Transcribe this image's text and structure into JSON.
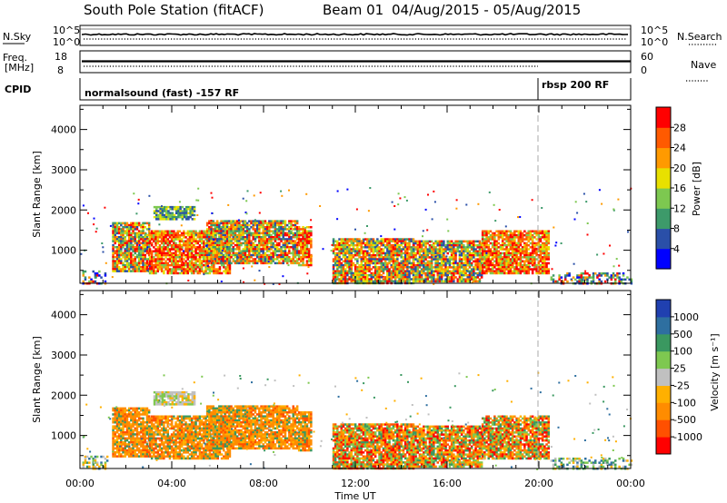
{
  "header": {
    "station": "South Pole Station (fitACF)",
    "beam": "Beam 01",
    "dates": "04/Aug/2015 - 05/Aug/2015"
  },
  "strip": {
    "nsky_label": "N.Sky",
    "nsearch_label": "N.Search",
    "nsky_ticks": [
      "10^5",
      "10^0"
    ],
    "freq_label": "Freq.",
    "freq_unit": "[MHz]",
    "freq_ticks": [
      "18",
      "8"
    ],
    "nave_label": "Nave",
    "nave_ticks": [
      "60",
      "0"
    ],
    "cpid_label": "CPID",
    "cpid_segments": [
      "normalsound (fast) -157 RF",
      "rbsp 200 RF"
    ],
    "cpid_change_time": 20.0
  },
  "colors": {
    "power": [
      "#0000ff",
      "#2a4fa8",
      "#3d9a6a",
      "#7dc850",
      "#e8e000",
      "#ff9a00",
      "#ff5a00",
      "#ff0000"
    ],
    "velocity": [
      "#2040b0",
      "#2e6fa0",
      "#3a9860",
      "#7ec850",
      "#c0c0c0",
      "#ffb000",
      "#ff8c00",
      "#ff5000",
      "#ff0000"
    ]
  },
  "chart_data": [
    {
      "type": "heatmap",
      "panel": "power",
      "ylabel": "Slant Range [km]",
      "yticks": [
        1000,
        2000,
        3000,
        4000
      ],
      "ylim": [
        180,
        4600
      ],
      "xlim": [
        0,
        24
      ],
      "colorbar_label": "Power [dB]",
      "colorbar_ticks": [
        "4",
        "8",
        "12",
        "16",
        "20",
        "24",
        "28"
      ],
      "regions": [
        {
          "t0": 0.1,
          "t1": 1.2,
          "r0": 180,
          "r1": 500,
          "value": "mixed"
        },
        {
          "t0": 1.4,
          "t1": 3.0,
          "r0": 500,
          "r1": 1700,
          "value": "mixed-high"
        },
        {
          "t0": 3.0,
          "t1": 6.5,
          "r0": 450,
          "r1": 1500,
          "value": "high"
        },
        {
          "t0": 3.2,
          "t1": 5.0,
          "r0": 1800,
          "r1": 2100,
          "value": "mid"
        },
        {
          "t0": 5.5,
          "t1": 9.5,
          "r0": 700,
          "r1": 1750,
          "value": "mixed-high"
        },
        {
          "t0": 9.5,
          "t1": 10.1,
          "r0": 650,
          "r1": 1600,
          "value": "high"
        },
        {
          "t0": 11.0,
          "t1": 14.5,
          "r0": 200,
          "r1": 1300,
          "value": "mixed-high"
        },
        {
          "t0": 14.5,
          "t1": 17.5,
          "r0": 250,
          "r1": 1250,
          "value": "mixed-high"
        },
        {
          "t0": 17.5,
          "t1": 20.4,
          "r0": 450,
          "r1": 1500,
          "value": "high"
        },
        {
          "t0": 20.5,
          "t1": 24.0,
          "r0": 200,
          "r1": 450,
          "value": "mixed"
        }
      ]
    },
    {
      "type": "heatmap",
      "panel": "velocity",
      "ylabel": "Slant Range [km]",
      "yticks": [
        1000,
        2000,
        3000,
        4000
      ],
      "ylim": [
        180,
        4600
      ],
      "xlim": [
        0,
        24
      ],
      "xlabel": "Time UT",
      "xticks": [
        "00:00",
        "04:00",
        "08:00",
        "12:00",
        "16:00",
        "20:00",
        "00:00"
      ],
      "colorbar_label": "Velocity [m s⁻¹]",
      "colorbar_ticks": [
        "1000",
        "500",
        "100",
        "25",
        "-25",
        "-100",
        "-500",
        "-1000"
      ],
      "regions": [
        {
          "t0": 0.1,
          "t1": 1.2,
          "r0": 180,
          "r1": 500,
          "value": "mixed"
        },
        {
          "t0": 1.4,
          "t1": 3.0,
          "r0": 500,
          "r1": 1700,
          "value": "neg"
        },
        {
          "t0": 3.0,
          "t1": 6.5,
          "r0": 450,
          "r1": 1500,
          "value": "neg"
        },
        {
          "t0": 3.2,
          "t1": 5.0,
          "r0": 1800,
          "r1": 2100,
          "value": "near-zero"
        },
        {
          "t0": 5.5,
          "t1": 9.5,
          "r0": 700,
          "r1": 1750,
          "value": "neg"
        },
        {
          "t0": 9.5,
          "t1": 10.1,
          "r0": 650,
          "r1": 1600,
          "value": "neg"
        },
        {
          "t0": 11.0,
          "t1": 14.5,
          "r0": 200,
          "r1": 1300,
          "value": "neg-mixed"
        },
        {
          "t0": 14.5,
          "t1": 17.5,
          "r0": 250,
          "r1": 1250,
          "value": "neg-mixed"
        },
        {
          "t0": 17.5,
          "t1": 20.4,
          "r0": 450,
          "r1": 1500,
          "value": "neg-mixed"
        },
        {
          "t0": 20.5,
          "t1": 24.0,
          "r0": 200,
          "r1": 450,
          "value": "mixed"
        }
      ]
    }
  ]
}
